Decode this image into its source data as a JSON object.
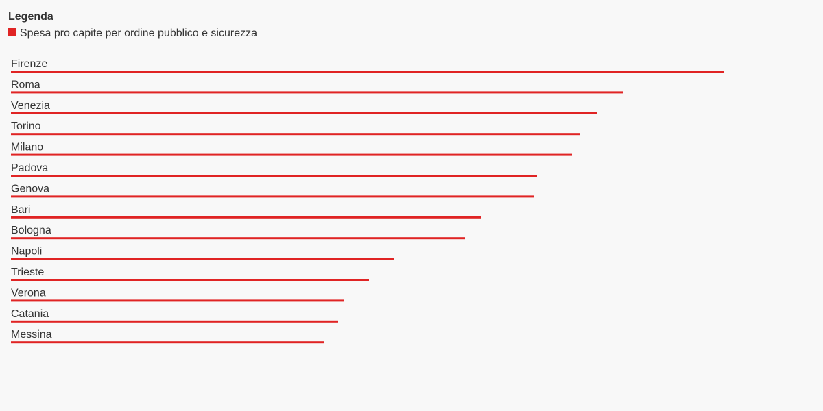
{
  "chart_data": {
    "type": "bar",
    "legend_title": "Legenda",
    "categories": [
      "Firenze",
      "Roma",
      "Venezia",
      "Torino",
      "Milano",
      "Padova",
      "Genova",
      "Bari",
      "Bologna",
      "Napoli",
      "Trieste",
      "Verona",
      "Catania",
      "Messina"
    ],
    "series": [
      {
        "name": "Spesa pro capite per ordine pubblico e sicurezza",
        "color": "#e02424",
        "values": [
          1040,
          892,
          855,
          829,
          818,
          767,
          762,
          686,
          662,
          559,
          522,
          486,
          477,
          457
        ]
      }
    ]
  }
}
